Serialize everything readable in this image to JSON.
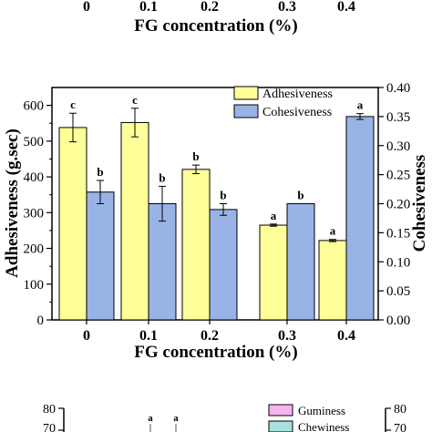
{
  "top_fragment": {
    "tick_labels": [
      "0",
      "0.1",
      "0.2",
      "0.3",
      "0.4"
    ],
    "xlabel": "FG concentration (%)"
  },
  "chart_data": {
    "type": "bar",
    "categories": [
      "0",
      "0.1",
      "0.2",
      "0.3",
      "0.4"
    ],
    "xlabel": "FG concentration (%)",
    "ylabel": "Adhesiveness (g.sec)",
    "y2label": "Cohesiveness",
    "ylim": [
      0,
      650
    ],
    "y2lim": [
      0,
      0.4
    ],
    "yticks": [
      0,
      100,
      200,
      300,
      400,
      500,
      600
    ],
    "y2ticks": [
      0.0,
      0.05,
      0.1,
      0.15,
      0.2,
      0.25,
      0.3,
      0.35,
      0.4
    ],
    "legend_position": "top-right",
    "series": [
      {
        "name": "Adhesiveness",
        "axis": "left",
        "color": "#ffff99",
        "values": [
          538,
          552,
          421,
          265,
          222
        ],
        "errors": [
          40,
          40,
          12,
          3,
          3
        ],
        "letters": [
          "c",
          "c",
          "b",
          "a",
          "a"
        ]
      },
      {
        "name": "Cohesiveness",
        "axis": "right",
        "color": "#99b3e6",
        "values": [
          0.22,
          0.2,
          0.19,
          0.2,
          0.35
        ],
        "errors": [
          0.02,
          0.03,
          0.01,
          0.0,
          0.005
        ],
        "letters": [
          "b",
          "b",
          "b",
          "b",
          "a"
        ]
      }
    ]
  },
  "bottom_fragment": {
    "left_ticks": [
      "80",
      "70"
    ],
    "right_ticks": [
      "80",
      "70"
    ],
    "letters": [
      "a",
      "a"
    ],
    "legend": [
      {
        "name": "Guminess",
        "color": "#f4b4f0"
      },
      {
        "name": "Chewiness",
        "color": "#a8e0e0"
      }
    ]
  }
}
